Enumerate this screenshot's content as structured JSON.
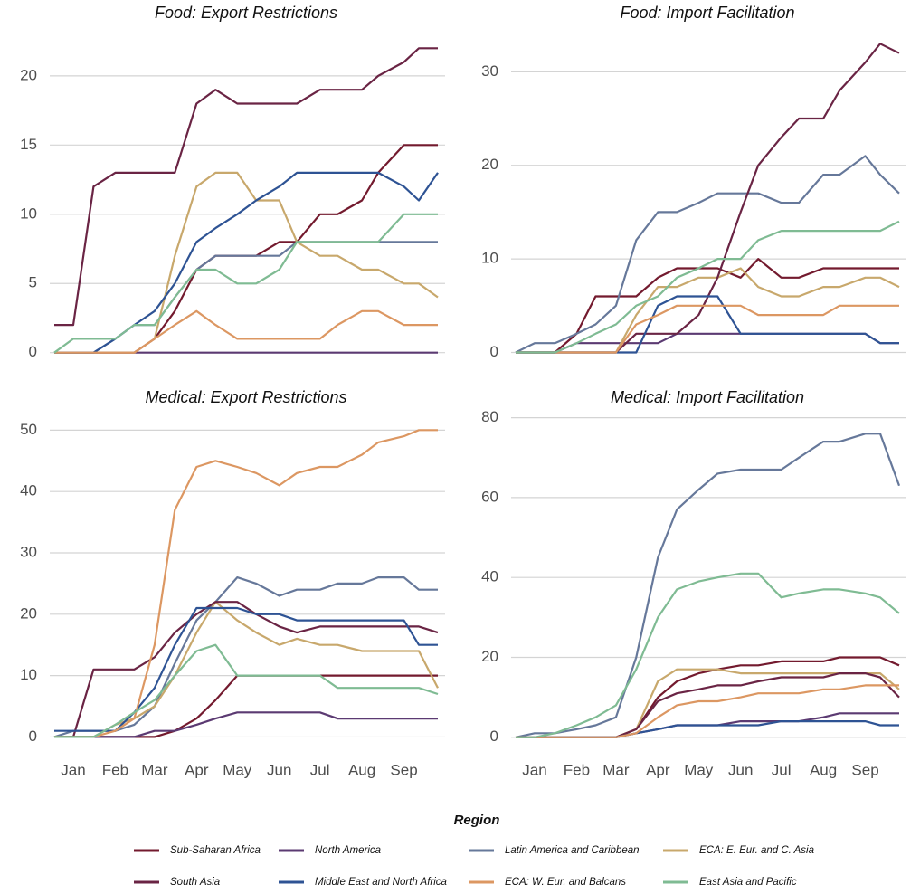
{
  "chart_data": [
    {
      "type": "line",
      "title": "Food: Export Restrictions",
      "grid": true,
      "x": [
        1,
        15,
        30,
        46,
        60,
        75,
        90,
        106,
        120,
        136,
        150,
        167,
        180,
        197,
        210,
        228,
        240,
        259,
        270,
        284
      ],
      "xlim": [
        1,
        284
      ],
      "ylim": [
        -1,
        23
      ],
      "yticks": [
        0,
        5,
        10,
        15,
        20
      ],
      "series": [
        {
          "name": "Sub-Saharan Africa",
          "color": "#731a2e",
          "values": [
            0,
            0,
            0,
            0,
            0,
            1,
            3,
            6,
            7,
            7,
            7,
            8,
            8,
            10,
            10,
            11,
            13,
            15,
            15,
            15
          ]
        },
        {
          "name": "North America",
          "color": "#5b3a72",
          "values": [
            0,
            0,
            0,
            0,
            0,
            0,
            0,
            0,
            0,
            0,
            0,
            0,
            0,
            0,
            0,
            0,
            0,
            0,
            0,
            0
          ]
        },
        {
          "name": "Latin America and Caribbean",
          "color": "#66789a",
          "values": [
            0,
            0,
            0,
            1,
            2,
            2,
            4,
            6,
            7,
            7,
            7,
            7,
            8,
            8,
            8,
            8,
            8,
            8,
            8,
            8
          ]
        },
        {
          "name": "ECA: E. Eur. and C. Asia",
          "color": "#c8a86c",
          "values": [
            0,
            0,
            0,
            0,
            0,
            1,
            7,
            12,
            13,
            13,
            11,
            11,
            8,
            7,
            7,
            6,
            6,
            5,
            5,
            4
          ]
        },
        {
          "name": "South Asia",
          "color": "#6a2444",
          "values": [
            2,
            2,
            12,
            13,
            13,
            13,
            13,
            18,
            19,
            18,
            18,
            18,
            18,
            19,
            19,
            19,
            20,
            21,
            22,
            22
          ]
        },
        {
          "name": "Middle East and North Africa",
          "color": "#2e5394",
          "values": [
            0,
            0,
            0,
            1,
            2,
            3,
            5,
            8,
            9,
            10,
            11,
            12,
            13,
            13,
            13,
            13,
            13,
            12,
            11,
            13
          ]
        },
        {
          "name": "ECA: W. Eur. and Balcans",
          "color": "#dc9762",
          "values": [
            0,
            0,
            0,
            0,
            0,
            1,
            2,
            3,
            2,
            1,
            1,
            1,
            1,
            1,
            2,
            3,
            3,
            2,
            2,
            2
          ]
        },
        {
          "name": "East Asia and Pacific",
          "color": "#7fbb93",
          "values": [
            0,
            1,
            1,
            1,
            2,
            2,
            4,
            6,
            6,
            5,
            5,
            6,
            8,
            8,
            8,
            8,
            8,
            10,
            10,
            10
          ]
        }
      ]
    },
    {
      "type": "line",
      "title": "Food: Import Facilitation",
      "grid": true,
      "x": [
        1,
        15,
        30,
        46,
        60,
        75,
        90,
        106,
        120,
        136,
        150,
        167,
        180,
        197,
        210,
        228,
        240,
        259,
        270,
        284
      ],
      "xlim": [
        1,
        284
      ],
      "ylim": [
        -1.5,
        34
      ],
      "yticks": [
        0,
        10,
        20,
        30
      ],
      "series": [
        {
          "name": "Sub-Saharan Africa",
          "color": "#731a2e",
          "values": [
            0,
            0,
            0,
            2,
            6,
            6,
            6,
            8,
            9,
            9,
            9,
            8,
            10,
            8,
            8,
            9,
            9,
            9,
            9,
            9
          ]
        },
        {
          "name": "North America",
          "color": "#5b3a72",
          "values": [
            0,
            0,
            0,
            1,
            1,
            1,
            1,
            1,
            2,
            2,
            2,
            2,
            2,
            2,
            2,
            2,
            2,
            2,
            1,
            1
          ]
        },
        {
          "name": "Latin America and Caribbean",
          "color": "#66789a",
          "values": [
            0,
            1,
            1,
            2,
            3,
            5,
            12,
            15,
            15,
            16,
            17,
            17,
            17,
            16,
            16,
            19,
            19,
            21,
            19,
            17
          ]
        },
        {
          "name": "ECA: E. Eur. and C. Asia",
          "color": "#c8a86c",
          "values": [
            0,
            0,
            0,
            0,
            0,
            0,
            4,
            7,
            7,
            8,
            8,
            9,
            7,
            6,
            6,
            7,
            7,
            8,
            8,
            7
          ]
        },
        {
          "name": "South Asia",
          "color": "#6a2444",
          "values": [
            0,
            0,
            0,
            0,
            0,
            0,
            2,
            2,
            2,
            4,
            8,
            15,
            20,
            23,
            25,
            25,
            28,
            31,
            33,
            32
          ]
        },
        {
          "name": "Middle East and North Africa",
          "color": "#2e5394",
          "values": [
            0,
            0,
            0,
            0,
            0,
            0,
            0,
            5,
            6,
            6,
            6,
            2,
            2,
            2,
            2,
            2,
            2,
            2,
            1,
            1
          ]
        },
        {
          "name": "ECA: W. Eur. and Balcans",
          "color": "#dc9762",
          "values": [
            0,
            0,
            0,
            0,
            0,
            0,
            3,
            4,
            5,
            5,
            5,
            5,
            4,
            4,
            4,
            4,
            5,
            5,
            5,
            5
          ]
        },
        {
          "name": "East Asia and Pacific",
          "color": "#7fbb93",
          "values": [
            0,
            0,
            0,
            1,
            2,
            3,
            5,
            6,
            8,
            9,
            10,
            10,
            12,
            13,
            13,
            13,
            13,
            13,
            13,
            14
          ]
        }
      ]
    },
    {
      "type": "line",
      "title": "Medical: Export Restrictions",
      "grid": true,
      "x": [
        1,
        15,
        30,
        46,
        60,
        75,
        90,
        106,
        120,
        136,
        150,
        167,
        180,
        197,
        210,
        228,
        240,
        259,
        270,
        284
      ],
      "xlim": [
        1,
        284
      ],
      "ylim": [
        -2,
        53
      ],
      "yticks": [
        0,
        10,
        20,
        30,
        40,
        50
      ],
      "xticks": [
        {
          "value": 15,
          "label": "Jan"
        },
        {
          "value": 46,
          "label": "Feb"
        },
        {
          "value": 75,
          "label": "Mar"
        },
        {
          "value": 106,
          "label": "Apr"
        },
        {
          "value": 136,
          "label": "May"
        },
        {
          "value": 167,
          "label": "Jun"
        },
        {
          "value": 197,
          "label": "Jul"
        },
        {
          "value": 228,
          "label": "Aug"
        },
        {
          "value": 259,
          "label": "Sep"
        }
      ],
      "series": [
        {
          "name": "Sub-Saharan Africa",
          "color": "#731a2e",
          "values": [
            0,
            0,
            0,
            0,
            0,
            0,
            1,
            3,
            6,
            10,
            10,
            10,
            10,
            10,
            10,
            10,
            10,
            10,
            10,
            10
          ]
        },
        {
          "name": "North America",
          "color": "#5b3a72",
          "values": [
            0,
            0,
            0,
            0,
            0,
            1,
            1,
            2,
            3,
            4,
            4,
            4,
            4,
            4,
            3,
            3,
            3,
            3,
            3,
            3
          ]
        },
        {
          "name": "Latin America and Caribbean",
          "color": "#66789a",
          "values": [
            0,
            1,
            1,
            1,
            2,
            5,
            12,
            19,
            22,
            26,
            25,
            23,
            24,
            24,
            25,
            25,
            26,
            26,
            24,
            24
          ]
        },
        {
          "name": "ECA: E. Eur. and C. Asia",
          "color": "#c8a86c",
          "values": [
            0,
            0,
            0,
            2,
            3,
            5,
            10,
            17,
            22,
            19,
            17,
            15,
            16,
            15,
            15,
            14,
            14,
            14,
            14,
            8
          ]
        },
        {
          "name": "South Asia",
          "color": "#6a2444",
          "values": [
            0,
            0,
            11,
            11,
            11,
            13,
            17,
            20,
            22,
            22,
            20,
            18,
            17,
            18,
            18,
            18,
            18,
            18,
            18,
            17
          ]
        },
        {
          "name": "Middle East and North Africa",
          "color": "#2e5394",
          "values": [
            1,
            1,
            1,
            1,
            4,
            8,
            15,
            21,
            21,
            21,
            20,
            20,
            19,
            19,
            19,
            19,
            19,
            19,
            15,
            15
          ]
        },
        {
          "name": "ECA: W. Eur. and Balcans",
          "color": "#dc9762",
          "values": [
            0,
            0,
            0,
            1,
            3,
            15,
            37,
            44,
            45,
            44,
            43,
            41,
            43,
            44,
            44,
            46,
            48,
            49,
            50,
            50
          ]
        },
        {
          "name": "East Asia and Pacific",
          "color": "#7fbb93",
          "values": [
            0,
            0,
            0,
            2,
            4,
            6,
            10,
            14,
            15,
            10,
            10,
            10,
            10,
            10,
            8,
            8,
            8,
            8,
            8,
            7
          ]
        }
      ]
    },
    {
      "type": "line",
      "title": "Medical: Import Facilitation",
      "grid": true,
      "x": [
        1,
        15,
        30,
        46,
        60,
        75,
        90,
        106,
        120,
        136,
        150,
        167,
        180,
        197,
        210,
        228,
        240,
        259,
        270,
        284
      ],
      "xlim": [
        1,
        284
      ],
      "ylim": [
        -3,
        81.5
      ],
      "yticks": [
        0,
        20,
        40,
        60,
        80
      ],
      "xticks": [
        {
          "value": 15,
          "label": "Jan"
        },
        {
          "value": 46,
          "label": "Feb"
        },
        {
          "value": 75,
          "label": "Mar"
        },
        {
          "value": 106,
          "label": "Apr"
        },
        {
          "value": 136,
          "label": "May"
        },
        {
          "value": 167,
          "label": "Jun"
        },
        {
          "value": 197,
          "label": "Jul"
        },
        {
          "value": 228,
          "label": "Aug"
        },
        {
          "value": 259,
          "label": "Sep"
        }
      ],
      "series": [
        {
          "name": "Sub-Saharan Africa",
          "color": "#731a2e",
          "values": [
            0,
            0,
            0,
            0,
            0,
            0,
            2,
            10,
            14,
            16,
            17,
            18,
            18,
            19,
            19,
            19,
            20,
            20,
            20,
            18
          ]
        },
        {
          "name": "North America",
          "color": "#5b3a72",
          "values": [
            0,
            0,
            0,
            0,
            0,
            0,
            1,
            2,
            3,
            3,
            3,
            4,
            4,
            4,
            4,
            5,
            6,
            6,
            6,
            6
          ]
        },
        {
          "name": "Latin America and Caribbean",
          "color": "#66789a",
          "values": [
            0,
            1,
            1,
            2,
            3,
            5,
            20,
            45,
            57,
            62,
            66,
            67,
            67,
            67,
            70,
            74,
            74,
            76,
            76,
            63
          ]
        },
        {
          "name": "ECA: E. Eur. and C. Asia",
          "color": "#c8a86c",
          "values": [
            0,
            0,
            0,
            0,
            0,
            0,
            2,
            14,
            17,
            17,
            17,
            16,
            16,
            16,
            16,
            16,
            16,
            16,
            16,
            12
          ]
        },
        {
          "name": "South Asia",
          "color": "#6a2444",
          "values": [
            0,
            0,
            0,
            0,
            0,
            0,
            2,
            9,
            11,
            12,
            13,
            13,
            14,
            15,
            15,
            15,
            16,
            16,
            15,
            10
          ]
        },
        {
          "name": "Middle East and North Africa",
          "color": "#2e5394",
          "values": [
            0,
            0,
            0,
            0,
            0,
            0,
            1,
            2,
            3,
            3,
            3,
            3,
            3,
            4,
            4,
            4,
            4,
            4,
            3,
            3
          ]
        },
        {
          "name": "ECA: W. Eur. and Balcans",
          "color": "#dc9762",
          "values": [
            0,
            0,
            0,
            0,
            0,
            0,
            1,
            5,
            8,
            9,
            9,
            10,
            11,
            11,
            11,
            12,
            12,
            13,
            13,
            13
          ]
        },
        {
          "name": "East Asia and Pacific",
          "color": "#7fbb93",
          "values": [
            0,
            0,
            1,
            3,
            5,
            8,
            17,
            30,
            37,
            39,
            40,
            41,
            41,
            35,
            36,
            37,
            37,
            36,
            35,
            31
          ]
        }
      ]
    }
  ],
  "legend": {
    "title": "Region"
  }
}
